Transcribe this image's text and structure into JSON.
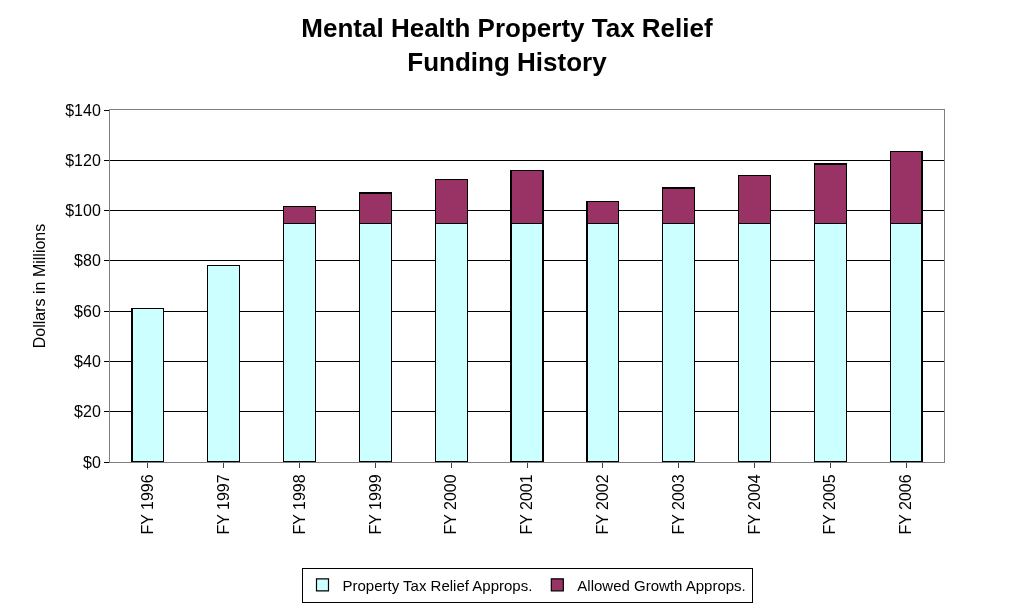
{
  "chart_data": {
    "type": "bar",
    "title": "Mental Health Property Tax Relief\nFunding History",
    "ylabel": "Dollars in Millions",
    "categories": [
      "FY 1996",
      "FY 1997",
      "FY 1998",
      "FY 1999",
      "FY 2000",
      "FY 2001",
      "FY 2002",
      "FY 2003",
      "FY 2004",
      "FY 2005",
      "FY 2006"
    ],
    "stacked": true,
    "series": [
      {
        "name": "Property Tax Relief Approps.",
        "color": "#ccffff",
        "values": [
          61,
          78,
          95,
          95,
          95,
          95,
          95,
          95,
          95,
          95,
          95
        ]
      },
      {
        "name": "Allowed Growth Approps.",
        "color": "#993366",
        "values": [
          null,
          null,
          6.5,
          12,
          17.5,
          21,
          8.5,
          14,
          19,
          23.5,
          28.5
        ]
      }
    ],
    "ylim": [
      0,
      140
    ],
    "yticks": [
      {
        "value": 0,
        "label": "$0"
      },
      {
        "value": 20,
        "label": "$20"
      },
      {
        "value": 40,
        "label": "$40"
      },
      {
        "value": 60,
        "label": "$60"
      },
      {
        "value": 80,
        "label": "$80"
      },
      {
        "value": 100,
        "label": "$100"
      },
      {
        "value": 120,
        "label": "$120"
      },
      {
        "value": 140,
        "label": "$140"
      }
    ],
    "grid": "y",
    "legend": "bottom"
  }
}
